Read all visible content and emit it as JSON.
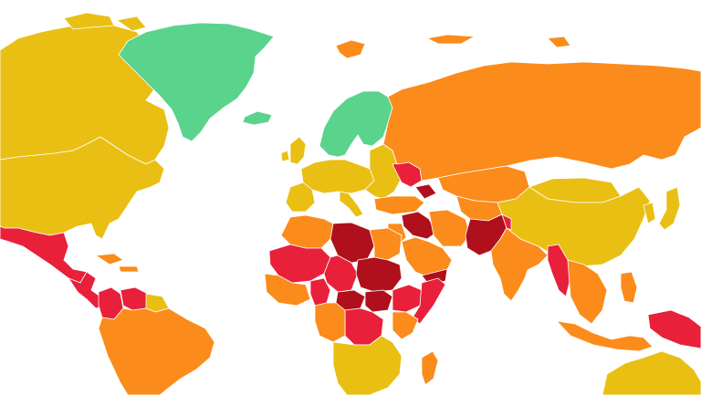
{
  "map": {
    "background": "#ffffff",
    "border_color": "#ffffff",
    "levels": {
      "safe": "#5ad38c",
      "low": "#e9bf14",
      "medium": "#fb8b1b",
      "high": "#e8203a",
      "extreme": "#b0101b"
    },
    "regions": [
      {
        "name": "greenland",
        "level": "safe"
      },
      {
        "name": "iceland",
        "level": "safe"
      },
      {
        "name": "svalbard",
        "level": "medium"
      },
      {
        "name": "norway-sweden-finland",
        "level": "safe"
      },
      {
        "name": "canada",
        "level": "low"
      },
      {
        "name": "arctic-islands",
        "level": "low"
      },
      {
        "name": "usa",
        "level": "low"
      },
      {
        "name": "mexico",
        "level": "high"
      },
      {
        "name": "central-america",
        "level": "high"
      },
      {
        "name": "caribbean",
        "level": "medium"
      },
      {
        "name": "colombia",
        "level": "high"
      },
      {
        "name": "venezuela",
        "level": "high"
      },
      {
        "name": "south-america",
        "level": "medium"
      },
      {
        "name": "guianas",
        "level": "low"
      },
      {
        "name": "europe-west",
        "level": "low"
      },
      {
        "name": "uk-ireland",
        "level": "low"
      },
      {
        "name": "iberia",
        "level": "low"
      },
      {
        "name": "italy",
        "level": "low"
      },
      {
        "name": "eastern-europe",
        "level": "low"
      },
      {
        "name": "ukraine",
        "level": "high"
      },
      {
        "name": "russia",
        "level": "medium"
      },
      {
        "name": "caucasus",
        "level": "extreme"
      },
      {
        "name": "turkey",
        "level": "medium"
      },
      {
        "name": "kazakhstan",
        "level": "medium"
      },
      {
        "name": "central-asia",
        "level": "medium"
      },
      {
        "name": "mongolia",
        "level": "low"
      },
      {
        "name": "china",
        "level": "low"
      },
      {
        "name": "japan",
        "level": "low"
      },
      {
        "name": "korea",
        "level": "low"
      },
      {
        "name": "middle-east",
        "level": "medium"
      },
      {
        "name": "syria-iraq",
        "level": "extreme"
      },
      {
        "name": "iran",
        "level": "medium"
      },
      {
        "name": "saudi-arabia",
        "level": "medium"
      },
      {
        "name": "yemen",
        "level": "extreme"
      },
      {
        "name": "afghanistan-pakistan",
        "level": "extreme"
      },
      {
        "name": "india",
        "level": "medium"
      },
      {
        "name": "kashmir",
        "level": "high"
      },
      {
        "name": "myanmar",
        "level": "high"
      },
      {
        "name": "southeast-asia",
        "level": "medium"
      },
      {
        "name": "philippines",
        "level": "medium"
      },
      {
        "name": "indonesia",
        "level": "medium"
      },
      {
        "name": "papua",
        "level": "high"
      },
      {
        "name": "north-africa",
        "level": "medium"
      },
      {
        "name": "egypt",
        "level": "medium"
      },
      {
        "name": "libya",
        "level": "extreme"
      },
      {
        "name": "sahel",
        "level": "high"
      },
      {
        "name": "chad",
        "level": "high"
      },
      {
        "name": "sudan",
        "level": "extreme"
      },
      {
        "name": "west-africa",
        "level": "medium"
      },
      {
        "name": "nigeria",
        "level": "high"
      },
      {
        "name": "car",
        "level": "extreme"
      },
      {
        "name": "south-sudan",
        "level": "extreme"
      },
      {
        "name": "ethiopia",
        "level": "high"
      },
      {
        "name": "somalia",
        "level": "high"
      },
      {
        "name": "kenya",
        "level": "medium"
      },
      {
        "name": "congo",
        "level": "high"
      },
      {
        "name": "central-africa",
        "level": "medium"
      },
      {
        "name": "southern-africa",
        "level": "low"
      },
      {
        "name": "madagascar",
        "level": "medium"
      },
      {
        "name": "australia",
        "level": "low"
      }
    ]
  }
}
